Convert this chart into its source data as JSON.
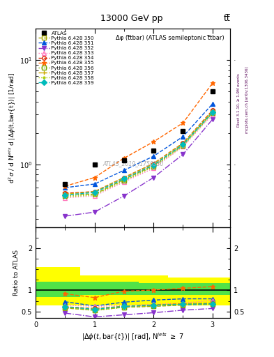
{
  "title_top": "13000 GeV pp",
  "title_right": "tt̅",
  "plot_title": "Δφ (t̅tbar) (ATLAS semileptonic t̅tbar)",
  "watermark": "ATLAS_2019_I1750330",
  "ylabel_main": "d²σ / d N⁺ʲˢ d |Δφ(t,bar{t})| [1/rad]",
  "ylabel_ratio": "Ratio to ATLAS",
  "right_label_top": "Rivet 3.1.10, ≥ 1.9M events",
  "right_label_bot": "mcplots.cern.ch [arXiv:1306.3436]",
  "atlas_x": [
    0.5,
    1.0,
    1.5,
    2.0,
    2.5,
    3.0
  ],
  "atlas_y": [
    0.65,
    1.0,
    1.1,
    1.35,
    2.1,
    5.0
  ],
  "series": [
    {
      "label": "Pythia 6.428 350",
      "color": "#aaaa00",
      "marker": "s",
      "linestyle": "--",
      "filled": false,
      "y_main": [
        0.52,
        0.52,
        0.72,
        0.98,
        1.55,
        3.2
      ],
      "y_ratio": [
        0.58,
        0.53,
        0.6,
        0.62,
        0.65,
        0.67
      ]
    },
    {
      "label": "Pythia 6.428 351",
      "color": "#0055dd",
      "marker": "^",
      "linestyle": "--",
      "filled": true,
      "y_main": [
        0.6,
        0.65,
        0.88,
        1.2,
        1.85,
        3.8
      ],
      "y_ratio": [
        0.73,
        0.63,
        0.72,
        0.77,
        0.8,
        0.8
      ]
    },
    {
      "label": "Pythia 6.428 352",
      "color": "#8833cc",
      "marker": "v",
      "linestyle": "-.",
      "filled": true,
      "y_main": [
        0.32,
        0.35,
        0.5,
        0.75,
        1.25,
        2.7
      ],
      "y_ratio": [
        0.46,
        0.37,
        0.42,
        0.47,
        0.53,
        0.57
      ]
    },
    {
      "label": "Pythia 6.428 353",
      "color": "#ff77bb",
      "marker": "^",
      "linestyle": ":",
      "filled": false,
      "y_main": [
        0.48,
        0.5,
        0.68,
        0.92,
        1.48,
        3.0
      ],
      "y_ratio": [
        0.65,
        0.62,
        0.64,
        0.67,
        0.7,
        0.76
      ]
    },
    {
      "label": "Pythia 6.428 354",
      "color": "#dd2200",
      "marker": "o",
      "linestyle": "--",
      "filled": false,
      "y_main": [
        0.53,
        0.55,
        0.75,
        1.02,
        1.6,
        3.3
      ],
      "y_ratio": [
        0.61,
        0.57,
        0.62,
        0.65,
        0.68,
        0.69
      ]
    },
    {
      "label": "Pythia 6.428 355",
      "color": "#ff6600",
      "marker": "*",
      "linestyle": "--",
      "filled": true,
      "y_main": [
        0.62,
        0.75,
        1.15,
        1.65,
        2.5,
        6.0
      ],
      "y_ratio": [
        0.92,
        0.83,
        0.98,
        1.01,
        1.05,
        1.09
      ]
    },
    {
      "label": "Pythia 6.428 356",
      "color": "#77aa00",
      "marker": "s",
      "linestyle": ":",
      "filled": false,
      "y_main": [
        0.5,
        0.52,
        0.7,
        0.96,
        1.52,
        3.1
      ],
      "y_ratio": [
        0.6,
        0.52,
        0.6,
        0.63,
        0.66,
        0.67
      ]
    },
    {
      "label": "Pythia 6.428 357",
      "color": "#ccaa00",
      "marker": "+",
      "linestyle": "--",
      "filled": false,
      "y_main": [
        0.52,
        0.55,
        0.75,
        1.02,
        1.6,
        3.25
      ],
      "y_ratio": [
        0.6,
        0.57,
        0.62,
        0.65,
        0.68,
        0.7
      ]
    },
    {
      "label": "Pythia 6.428 358",
      "color": "#aacc00",
      "marker": ".",
      "linestyle": ":",
      "filled": false,
      "y_main": [
        0.49,
        0.51,
        0.7,
        0.95,
        1.5,
        3.1
      ],
      "y_ratio": [
        0.59,
        0.53,
        0.6,
        0.63,
        0.66,
        0.68
      ]
    },
    {
      "label": "Pythia 6.428 359",
      "color": "#00bbbb",
      "marker": "D",
      "linestyle": "--",
      "filled": true,
      "y_main": [
        0.51,
        0.54,
        0.73,
        0.99,
        1.55,
        3.15
      ],
      "y_ratio": [
        0.61,
        0.55,
        0.62,
        0.65,
        0.67,
        0.68
      ]
    }
  ],
  "bin_edges": [
    0.0,
    0.75,
    1.25,
    1.75,
    2.25,
    2.75,
    3.3
  ],
  "yellow_lo": [
    0.65,
    0.65,
    0.65,
    0.65,
    0.65,
    0.65
  ],
  "yellow_hi": [
    1.55,
    1.35,
    1.35,
    1.35,
    1.3,
    1.3
  ],
  "green_lo": [
    0.85,
    0.9,
    0.9,
    0.9,
    0.9,
    0.9
  ],
  "green_hi": [
    1.2,
    1.2,
    1.2,
    1.18,
    1.18,
    1.18
  ],
  "ylim_main": [
    0.25,
    20
  ],
  "ylim_ratio": [
    0.35,
    2.5
  ],
  "xlim": [
    0,
    3.3
  ],
  "xticks": [
    0,
    1,
    2,
    3
  ],
  "ratio_yticks": [
    0.5,
    1.0,
    2.0
  ],
  "figsize": [
    3.93,
    5.12
  ],
  "dpi": 100
}
